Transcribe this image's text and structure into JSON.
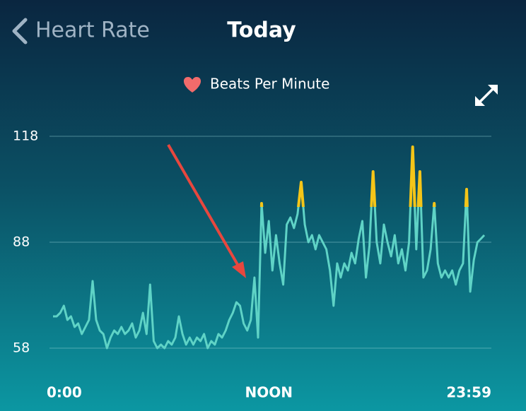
{
  "header": {
    "back": "Heart Rate",
    "title": "Today"
  },
  "chart_data": {
    "type": "line",
    "legend": true,
    "series": [
      {
        "name": "Beats Per Minute",
        "color": "#5fd3c6",
        "values": [
          67,
          67,
          68,
          70,
          66,
          67,
          64,
          65,
          62,
          64,
          66,
          77,
          66,
          63,
          62,
          58,
          61,
          63,
          62,
          64,
          62,
          63,
          65,
          61,
          63,
          68,
          62,
          76,
          60,
          58,
          59,
          58,
          60,
          59,
          61,
          67,
          62,
          59,
          61,
          59,
          61,
          60,
          62,
          58,
          60,
          59,
          62,
          61,
          63,
          66,
          68,
          71,
          70,
          65,
          63,
          66,
          78,
          61,
          99,
          85,
          94,
          80,
          90,
          82,
          76,
          93,
          95,
          92,
          96,
          105,
          93,
          88,
          90,
          86,
          90,
          88,
          86,
          80,
          70,
          82,
          78,
          82,
          80,
          85,
          82,
          89,
          94,
          78,
          87,
          108,
          88,
          82,
          93,
          88,
          84,
          90,
          82,
          86,
          80,
          88,
          115,
          86,
          108,
          78,
          80,
          86,
          99,
          82,
          78,
          80,
          78,
          80,
          76,
          80,
          82,
          103,
          74,
          83,
          88,
          89,
          90
        ]
      }
    ],
    "x": [
      0,
      12,
      24,
      36,
      48,
      60,
      72,
      84,
      96,
      108,
      120,
      132,
      144,
      156,
      168,
      180,
      192,
      204,
      216,
      228,
      240,
      252,
      264,
      276,
      288,
      300,
      312,
      324,
      336,
      348,
      360,
      372,
      384,
      396,
      408,
      420,
      432,
      444,
      456,
      468,
      480,
      492,
      504,
      516,
      528,
      540,
      552,
      564,
      576,
      588,
      600,
      612,
      624,
      636,
      648,
      660,
      672,
      684,
      696,
      708,
      720,
      732,
      744,
      756,
      768,
      780,
      792,
      804,
      816,
      828,
      840,
      852,
      864,
      876,
      888,
      900,
      912,
      924,
      936,
      948,
      960,
      972,
      984,
      996,
      1008,
      1020,
      1032,
      1044,
      1056,
      1068,
      1080,
      1092,
      1104,
      1116,
      1128,
      1140,
      1152,
      1164,
      1176,
      1188,
      1200,
      1212,
      1224,
      1236,
      1248,
      1260,
      1272,
      1284,
      1296,
      1308,
      1320,
      1332,
      1344,
      1356,
      1368,
      1380,
      1392,
      1404,
      1416,
      1428,
      1439
    ],
    "xlim": [
      0,
      1439
    ],
    "xticks": [
      {
        "value": 0,
        "label": "0:00"
      },
      {
        "value": 720,
        "label": "NOON"
      },
      {
        "value": 1439,
        "label": "23:59"
      }
    ],
    "ylim": [
      58,
      118
    ],
    "yticks": [
      58,
      88,
      118
    ],
    "grid": true,
    "zone_color": "#f5c518",
    "zone_from": 98
  }
}
